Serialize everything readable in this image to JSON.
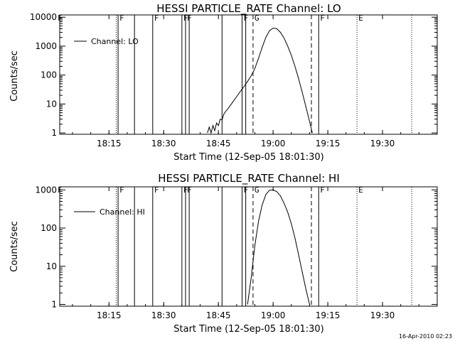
{
  "chart_data": [
    {
      "type": "line",
      "title": "HESSI PARTICLE_RATE Channel: LO",
      "xlabel": "Start Time (12-Sep-05 18:01:30)",
      "ylabel": "Counts/sec",
      "y_scale": "log",
      "ylim": [
        0.9,
        12000
      ],
      "xlim": [
        "18:01:30",
        "19:45:00"
      ],
      "x_ticks": [
        "18:15",
        "18:30",
        "18:45",
        "19:00",
        "19:15",
        "19:30"
      ],
      "y_ticks": [
        "1",
        "10",
        "100",
        "1000",
        "10000"
      ],
      "legend": "top-left",
      "series": [
        {
          "name": "Channel: LO",
          "points": [
            [
              "18:42:00",
              1
            ],
            [
              "18:42:30",
              1.6
            ],
            [
              "18:43:00",
              1
            ],
            [
              "18:43:30",
              1.8
            ],
            [
              "18:44:00",
              1.2
            ],
            [
              "18:44:30",
              2.2
            ],
            [
              "18:45:00",
              1.8
            ],
            [
              "18:45:30",
              3
            ],
            [
              "18:46:00",
              2.8
            ],
            [
              "18:46:30",
              4.5
            ],
            [
              "18:47:00",
              5.5
            ],
            [
              "18:48:00",
              8
            ],
            [
              "18:49:00",
              12
            ],
            [
              "18:50:00",
              18
            ],
            [
              "18:51:00",
              27
            ],
            [
              "18:52:00",
              40
            ],
            [
              "18:53:00",
              60
            ],
            [
              "18:54:00",
              95
            ],
            [
              "18:55:00",
              170
            ],
            [
              "18:56:00",
              380
            ],
            [
              "18:57:00",
              900
            ],
            [
              "18:58:00",
              2000
            ],
            [
              "18:59:00",
              3400
            ],
            [
              "19:00:00",
              4200
            ],
            [
              "19:01:00",
              4000
            ],
            [
              "19:02:00",
              3000
            ],
            [
              "19:03:00",
              1900
            ],
            [
              "19:04:00",
              1000
            ],
            [
              "19:05:00",
              480
            ],
            [
              "19:06:00",
              200
            ],
            [
              "19:07:00",
              75
            ],
            [
              "19:08:00",
              25
            ],
            [
              "19:09:00",
              8
            ],
            [
              "19:10:00",
              2.5
            ],
            [
              "19:10:45",
              1
            ]
          ]
        }
      ],
      "event_lines": [
        {
          "time": "18:17:00",
          "style": "dotted",
          "flag": ""
        },
        {
          "time": "18:17:30",
          "style": "solid",
          "flag": "F"
        },
        {
          "time": "18:22:00",
          "style": "solid",
          "flag": ""
        },
        {
          "time": "18:27:00",
          "style": "solid",
          "flag": "F"
        },
        {
          "time": "18:35:00",
          "style": "solid",
          "flag": "F"
        },
        {
          "time": "18:36:00",
          "style": "solid",
          "flag": "F"
        },
        {
          "time": "18:37:00",
          "style": "solid",
          "flag": ""
        },
        {
          "time": "18:46:00",
          "style": "solid",
          "flag": ""
        },
        {
          "time": "18:51:30",
          "style": "solid",
          "flag": "F"
        },
        {
          "time": "18:52:30",
          "style": "solid",
          "flag": ""
        },
        {
          "time": "18:54:30",
          "style": "dashed",
          "flag": "G"
        },
        {
          "time": "19:10:30",
          "style": "dashed",
          "flag": ""
        },
        {
          "time": "19:12:30",
          "style": "solid",
          "flag": "F"
        },
        {
          "time": "19:23:00",
          "style": "dotted",
          "flag": "E"
        },
        {
          "time": "19:38:00",
          "style": "dotted",
          "flag": ""
        }
      ]
    },
    {
      "type": "line",
      "title": "HESSI PARTICLE_RATE Channel: HI",
      "xlabel": "Start Time (12-Sep-05 18:01:30)",
      "ylabel": "Counts/sec",
      "y_scale": "log",
      "ylim": [
        0.9,
        1200
      ],
      "xlim": [
        "18:01:30",
        "19:45:00"
      ],
      "x_ticks": [
        "18:15",
        "18:30",
        "18:45",
        "19:00",
        "19:15",
        "19:30"
      ],
      "y_ticks": [
        "1",
        "10",
        "100",
        "1000"
      ],
      "legend": "top-left",
      "series": [
        {
          "name": "Channel: HI",
          "points": [
            [
              "18:53:00",
              1
            ],
            [
              "18:54:00",
              5
            ],
            [
              "18:55:00",
              35
            ],
            [
              "18:56:00",
              150
            ],
            [
              "18:57:00",
              400
            ],
            [
              "18:58:00",
              750
            ],
            [
              "18:59:00",
              980
            ],
            [
              "19:00:00",
              1000
            ],
            [
              "19:01:00",
              900
            ],
            [
              "19:02:00",
              700
            ],
            [
              "19:03:00",
              450
            ],
            [
              "19:04:00",
              260
            ],
            [
              "19:05:00",
              130
            ],
            [
              "19:06:00",
              55
            ],
            [
              "19:07:00",
              20
            ],
            [
              "19:08:00",
              7
            ],
            [
              "19:09:00",
              2.5
            ],
            [
              "19:10:00",
              1
            ]
          ]
        }
      ],
      "event_lines": [
        {
          "time": "18:17:00",
          "style": "dotted",
          "flag": ""
        },
        {
          "time": "18:17:30",
          "style": "solid",
          "flag": "F"
        },
        {
          "time": "18:22:00",
          "style": "solid",
          "flag": ""
        },
        {
          "time": "18:27:00",
          "style": "solid",
          "flag": "F"
        },
        {
          "time": "18:35:00",
          "style": "solid",
          "flag": "F"
        },
        {
          "time": "18:36:00",
          "style": "solid",
          "flag": "F"
        },
        {
          "time": "18:37:00",
          "style": "solid",
          "flag": ""
        },
        {
          "time": "18:46:00",
          "style": "solid",
          "flag": ""
        },
        {
          "time": "18:51:30",
          "style": "solid",
          "flag": "F"
        },
        {
          "time": "18:52:30",
          "style": "solid",
          "flag": ""
        },
        {
          "time": "18:54:30",
          "style": "dashed",
          "flag": "G"
        },
        {
          "time": "19:10:30",
          "style": "dashed",
          "flag": ""
        },
        {
          "time": "19:12:30",
          "style": "solid",
          "flag": "F"
        },
        {
          "time": "19:23:00",
          "style": "dotted",
          "flag": "E"
        },
        {
          "time": "19:38:00",
          "style": "dotted",
          "flag": ""
        }
      ]
    }
  ],
  "corner_flag": "F",
  "footer": {
    "timestamp": "16-Apr-2010 02:23"
  }
}
